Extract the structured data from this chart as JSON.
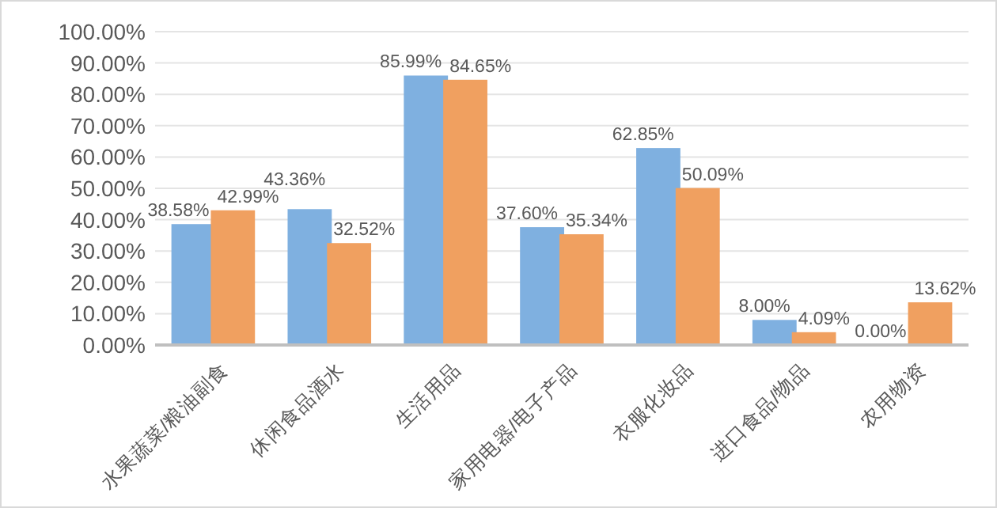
{
  "chart_data": {
    "type": "bar",
    "categories": [
      "水果蔬菜/粮油副食",
      "休闲食品酒水",
      "生活用品",
      "家用电器/电子产品",
      "衣服化妆品",
      "进口食品/物品",
      "农用物资"
    ],
    "series": [
      {
        "color": "#7fb0e0",
        "values": [
          38.58,
          43.36,
          85.99,
          37.6,
          62.85,
          8.0,
          0.0
        ],
        "value_labels": [
          "38.58%",
          "43.36%",
          "85.99%",
          "37.60%",
          "62.85%",
          "8.00%",
          "0.00%"
        ]
      },
      {
        "color": "#f0a060",
        "values": [
          42.99,
          32.52,
          84.65,
          35.34,
          50.09,
          4.09,
          13.62
        ],
        "value_labels": [
          "42.99%",
          "32.52%",
          "84.65%",
          "35.34%",
          "50.09%",
          "4.09%",
          "13.62%"
        ]
      }
    ],
    "ylim": [
      0,
      100
    ],
    "yticks": [
      {
        "value": 0,
        "label": "0.00%"
      },
      {
        "value": 10,
        "label": "10.00%"
      },
      {
        "value": 20,
        "label": "20.00%"
      },
      {
        "value": 30,
        "label": "30.00%"
      },
      {
        "value": 40,
        "label": "40.00%"
      },
      {
        "value": 50,
        "label": "50.00%"
      },
      {
        "value": 60,
        "label": "60.00%"
      },
      {
        "value": 70,
        "label": "70.00%"
      },
      {
        "value": 80,
        "label": "80.00%"
      },
      {
        "value": 90,
        "label": "90.00%"
      },
      {
        "value": 100,
        "label": "100.00%"
      }
    ],
    "grid": "y"
  }
}
